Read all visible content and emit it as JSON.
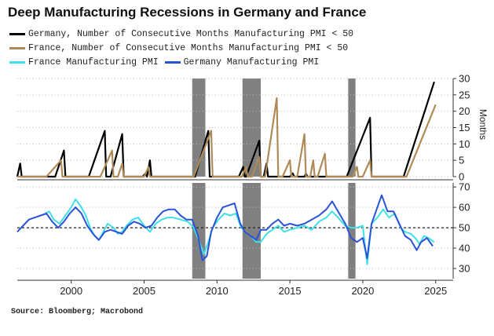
{
  "title": "Deep Manufacturing Recessions in Germany and France",
  "source": "Source: Bloomberg; Macrobond",
  "colors": {
    "germany_months": "#000000",
    "france_months": "#b08a56",
    "france_pmi": "#3fe0e6",
    "germany_pmi": "#2a52d6",
    "recession": "#808080"
  },
  "chart_data": {
    "type": "line",
    "x_axis": {
      "range": [
        1996.3,
        2026.2
      ],
      "ticks": [
        2000,
        2005,
        2010,
        2015,
        2020,
        2025
      ]
    },
    "recessions": [
      [
        2008.3,
        2009.2
      ],
      [
        2011.75,
        2013.0
      ],
      [
        2019.0,
        2019.5
      ]
    ],
    "panels": [
      {
        "id": "top",
        "ylabel": "Months",
        "ylim": [
          0,
          30
        ],
        "yticks": [
          0,
          5,
          10,
          15,
          20,
          25,
          30
        ],
        "series": [
          {
            "name": "Germany, Number of Consecutive Months Manufacturing PMI < 50",
            "color": "#000000",
            "points": [
              [
                1996.3,
                0
              ],
              [
                1996.5,
                4
              ],
              [
                1996.6,
                0
              ],
              [
                1998.9,
                0
              ],
              [
                1999.5,
                8
              ],
              [
                1999.6,
                0
              ],
              [
                2001.2,
                0
              ],
              [
                2002.3,
                14
              ],
              [
                2002.4,
                0
              ],
              [
                2002.7,
                0
              ],
              [
                2003.5,
                13
              ],
              [
                2003.6,
                0
              ],
              [
                2004.9,
                0
              ],
              [
                2005.1,
                1
              ],
              [
                2005.2,
                0
              ],
              [
                2005.4,
                5
              ],
              [
                2005.5,
                0
              ],
              [
                2007.0,
                0
              ],
              [
                2007.5,
                0
              ],
              [
                2008.5,
                0
              ],
              [
                2009.4,
                14
              ],
              [
                2009.5,
                0
              ],
              [
                2011.5,
                0
              ],
              [
                2011.8,
                3
              ],
              [
                2011.9,
                0
              ],
              [
                2012.0,
                0
              ],
              [
                2012.9,
                11
              ],
              [
                2013.0,
                0
              ],
              [
                2013.2,
                0
              ],
              [
                2013.4,
                4
              ],
              [
                2013.5,
                0
              ],
              [
                2015.0,
                0
              ],
              [
                2015.2,
                1
              ],
              [
                2015.3,
                0
              ],
              [
                2016.0,
                0
              ],
              [
                2016.1,
                1
              ],
              [
                2016.2,
                0
              ],
              [
                2018.9,
                0
              ],
              [
                2020.5,
                18
              ],
              [
                2020.6,
                0
              ],
              [
                2022.5,
                0
              ],
              [
                2022.8,
                0
              ],
              [
                2024.9,
                29
              ]
            ]
          },
          {
            "name": "France, Number of Consecutive Months Manufacturing PMI < 50",
            "color": "#b08a56",
            "points": [
              [
                1996.3,
                0
              ],
              [
                1998.3,
                0
              ],
              [
                1999.3,
                5
              ],
              [
                1999.4,
                0
              ],
              [
                2002.0,
                0
              ],
              [
                2002.8,
                8
              ],
              [
                2002.9,
                0
              ],
              [
                2003.2,
                0
              ],
              [
                2003.5,
                4
              ],
              [
                2003.6,
                0
              ],
              [
                2005.0,
                0
              ],
              [
                2005.3,
                3
              ],
              [
                2005.4,
                0
              ],
              [
                2008.4,
                0
              ],
              [
                2009.6,
                14
              ],
              [
                2009.7,
                0
              ],
              [
                2011.7,
                0
              ],
              [
                2012.0,
                3
              ],
              [
                2012.1,
                0
              ],
              [
                2012.4,
                0
              ],
              [
                2012.9,
                6
              ],
              [
                2013.0,
                0
              ],
              [
                2013.3,
                0
              ],
              [
                2014.1,
                24
              ],
              [
                2014.2,
                0
              ],
              [
                2014.5,
                0
              ],
              [
                2015.0,
                5
              ],
              [
                2015.1,
                0
              ],
              [
                2015.5,
                0
              ],
              [
                2016.0,
                13
              ],
              [
                2016.1,
                0
              ],
              [
                2016.4,
                0
              ],
              [
                2016.6,
                5
              ],
              [
                2016.7,
                0
              ],
              [
                2016.9,
                0
              ],
              [
                2017.4,
                7
              ],
              [
                2017.5,
                0
              ],
              [
                2019.3,
                0
              ],
              [
                2019.6,
                3
              ],
              [
                2019.7,
                0
              ],
              [
                2020.0,
                0
              ],
              [
                2020.5,
                5
              ],
              [
                2020.6,
                0
              ],
              [
                2023.0,
                0
              ],
              [
                2025.0,
                22
              ]
            ]
          }
        ]
      },
      {
        "id": "bottom",
        "ylabel": "",
        "ylim": [
          25,
          72
        ],
        "yticks": [
          30,
          40,
          50,
          60,
          70
        ],
        "reference_line": 50,
        "series": [
          {
            "name": "France Manufacturing PMI",
            "color": "#3fe0e6",
            "points": [
              [
                1998.2,
                57
              ],
              [
                1998.5,
                58
              ],
              [
                1998.8,
                54
              ],
              [
                1999.2,
                52
              ],
              [
                1999.6,
                56
              ],
              [
                2000.0,
                60
              ],
              [
                2000.3,
                64
              ],
              [
                2000.7,
                60
              ],
              [
                2001.0,
                56
              ],
              [
                2001.3,
                50
              ],
              [
                2001.6,
                46
              ],
              [
                2001.9,
                44
              ],
              [
                2002.2,
                48
              ],
              [
                2002.5,
                52
              ],
              [
                2002.9,
                50
              ],
              [
                2003.2,
                47
              ],
              [
                2003.5,
                48
              ],
              [
                2003.8,
                51
              ],
              [
                2004.2,
                54
              ],
              [
                2004.6,
                55
              ],
              [
                2005.0,
                51
              ],
              [
                2005.4,
                48
              ],
              [
                2005.8,
                52
              ],
              [
                2006.2,
                54
              ],
              [
                2006.6,
                55
              ],
              [
                2007.0,
                55
              ],
              [
                2007.5,
                54
              ],
              [
                2008.0,
                53
              ],
              [
                2008.4,
                50
              ],
              [
                2008.8,
                43
              ],
              [
                2009.1,
                37
              ],
              [
                2009.4,
                43
              ],
              [
                2009.7,
                50
              ],
              [
                2010.1,
                54
              ],
              [
                2010.5,
                57
              ],
              [
                2010.9,
                56
              ],
              [
                2011.3,
                57
              ],
              [
                2011.6,
                51
              ],
              [
                2011.9,
                48
              ],
              [
                2012.3,
                46
              ],
              [
                2012.7,
                43
              ],
              [
                2013.0,
                43
              ],
              [
                2013.4,
                47
              ],
              [
                2013.8,
                49
              ],
              [
                2014.2,
                51
              ],
              [
                2014.6,
                48
              ],
              [
                2015.0,
                49
              ],
              [
                2015.5,
                50
              ],
              [
                2016.0,
                51
              ],
              [
                2016.5,
                49
              ],
              [
                2017.0,
                53
              ],
              [
                2017.5,
                55
              ],
              [
                2017.9,
                58
              ],
              [
                2018.3,
                55
              ],
              [
                2018.8,
                51
              ],
              [
                2019.2,
                50
              ],
              [
                2019.6,
                50
              ],
              [
                2020.0,
                51
              ],
              [
                2020.3,
                32
              ],
              [
                2020.6,
                52
              ],
              [
                2021.0,
                55
              ],
              [
                2021.4,
                59
              ],
              [
                2021.8,
                55
              ],
              [
                2022.2,
                57
              ],
              [
                2022.6,
                50
              ],
              [
                2022.9,
                48
              ],
              [
                2023.3,
                47
              ],
              [
                2023.6,
                45
              ],
              [
                2023.9,
                42
              ],
              [
                2024.2,
                46
              ],
              [
                2024.5,
                45
              ],
              [
                2024.9,
                43
              ]
            ]
          },
          {
            "name": "Germany Manufacturing PMI",
            "color": "#2a52d6",
            "points": [
              [
                1996.3,
                48
              ],
              [
                1996.7,
                51
              ],
              [
                1997.1,
                54
              ],
              [
                1997.5,
                55
              ],
              [
                1997.9,
                56
              ],
              [
                1998.3,
                57
              ],
              [
                1998.7,
                53
              ],
              [
                1999.1,
                50
              ],
              [
                1999.5,
                53
              ],
              [
                1999.9,
                57
              ],
              [
                2000.3,
                60
              ],
              [
                2000.7,
                57
              ],
              [
                2001.1,
                51
              ],
              [
                2001.5,
                47
              ],
              [
                2001.9,
                44
              ],
              [
                2002.3,
                48
              ],
              [
                2002.7,
                49
              ],
              [
                2003.1,
                48
              ],
              [
                2003.5,
                47
              ],
              [
                2003.9,
                51
              ],
              [
                2004.3,
                53
              ],
              [
                2004.7,
                52
              ],
              [
                2005.1,
                50
              ],
              [
                2005.5,
                51
              ],
              [
                2005.9,
                55
              ],
              [
                2006.3,
                58
              ],
              [
                2006.7,
                59
              ],
              [
                2007.1,
                59
              ],
              [
                2007.5,
                56
              ],
              [
                2007.9,
                54
              ],
              [
                2008.3,
                54
              ],
              [
                2008.7,
                46
              ],
              [
                2009.0,
                34
              ],
              [
                2009.3,
                36
              ],
              [
                2009.6,
                48
              ],
              [
                2010.0,
                55
              ],
              [
                2010.4,
                60
              ],
              [
                2010.8,
                61
              ],
              [
                2011.2,
                62
              ],
              [
                2011.6,
                52
              ],
              [
                2011.9,
                48
              ],
              [
                2012.3,
                46
              ],
              [
                2012.7,
                44
              ],
              [
                2013.0,
                49
              ],
              [
                2013.4,
                49
              ],
              [
                2013.8,
                52
              ],
              [
                2014.2,
                54
              ],
              [
                2014.6,
                51
              ],
              [
                2015.0,
                52
              ],
              [
                2015.5,
                51
              ],
              [
                2016.0,
                52
              ],
              [
                2016.5,
                54
              ],
              [
                2017.0,
                56
              ],
              [
                2017.5,
                59
              ],
              [
                2017.9,
                63
              ],
              [
                2018.3,
                58
              ],
              [
                2018.8,
                52
              ],
              [
                2019.2,
                45
              ],
              [
                2019.6,
                43
              ],
              [
                2020.0,
                45
              ],
              [
                2020.3,
                35
              ],
              [
                2020.6,
                52
              ],
              [
                2021.0,
                60
              ],
              [
                2021.3,
                66
              ],
              [
                2021.7,
                58
              ],
              [
                2022.1,
                58
              ],
              [
                2022.5,
                52
              ],
              [
                2022.9,
                46
              ],
              [
                2023.3,
                44
              ],
              [
                2023.7,
                39
              ],
              [
                2024.0,
                43
              ],
              [
                2024.4,
                45
              ],
              [
                2024.8,
                41
              ]
            ]
          }
        ]
      }
    ]
  }
}
